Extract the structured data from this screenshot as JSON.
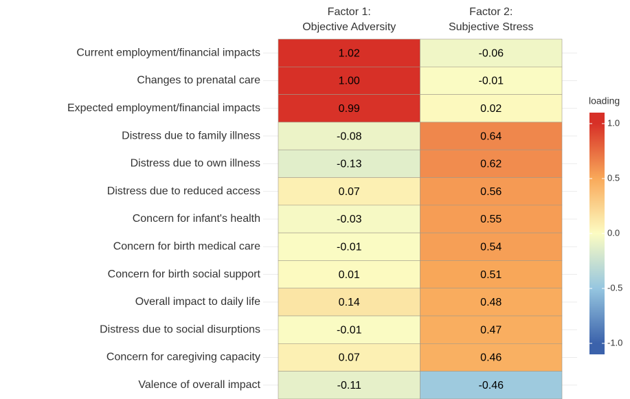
{
  "chart_data": {
    "type": "heatmap",
    "x_categories": [
      [
        "Factor 1:",
        "Objective Adversity"
      ],
      [
        "Factor 2:",
        "Subjective Stress"
      ]
    ],
    "y_categories": [
      "Current employment/financial impacts",
      "Changes to prenatal care",
      "Expected employment/financial impacts",
      "Distress due to family illness",
      "Distress due to own illness",
      "Distress due to reduced access",
      "Concern for infant's health",
      "Concern for birth medical care",
      "Concern for birth social support",
      "Overall impact to daily life",
      "Distress due to social disurptions",
      "Concern for caregiving capacity",
      "Valence of overall impact"
    ],
    "values": [
      [
        1.02,
        -0.06
      ],
      [
        1.0,
        -0.01
      ],
      [
        0.99,
        0.02
      ],
      [
        -0.08,
        0.64
      ],
      [
        -0.13,
        0.62
      ],
      [
        0.07,
        0.56
      ],
      [
        -0.03,
        0.55
      ],
      [
        -0.01,
        0.54
      ],
      [
        0.01,
        0.51
      ],
      [
        0.14,
        0.48
      ],
      [
        -0.01,
        0.47
      ],
      [
        0.07,
        0.46
      ],
      [
        -0.11,
        -0.46
      ]
    ],
    "value_labels": [
      [
        "1.02",
        "-0.06"
      ],
      [
        "1.00",
        "-0.01"
      ],
      [
        "0.99",
        "0.02"
      ],
      [
        "-0.08",
        "0.64"
      ],
      [
        "-0.13",
        "0.62"
      ],
      [
        "0.07",
        "0.56"
      ],
      [
        "-0.03",
        "0.55"
      ],
      [
        "-0.01",
        "0.54"
      ],
      [
        "0.01",
        "0.51"
      ],
      [
        "0.14",
        "0.48"
      ],
      [
        "-0.01",
        "0.47"
      ],
      [
        "0.07",
        "0.46"
      ],
      [
        "-0.11",
        "-0.46"
      ]
    ],
    "legend_title": "loading",
    "clim": [
      -1.1,
      1.1
    ],
    "cticks": [
      {
        "value": 1,
        "label": "1.0"
      },
      0.5,
      {
        "value": 0,
        "label": "0.0"
      },
      -0.5,
      {
        "value": -1,
        "label": "-1.0"
      }
    ],
    "colorscale": [
      [
        -1,
        "#3b62ab"
      ],
      [
        -0.5,
        "#96c6e0"
      ],
      [
        0,
        "#fcfcc2"
      ],
      [
        0.5,
        "#f9a95a"
      ],
      [
        1,
        "#d73027"
      ]
    ]
  }
}
